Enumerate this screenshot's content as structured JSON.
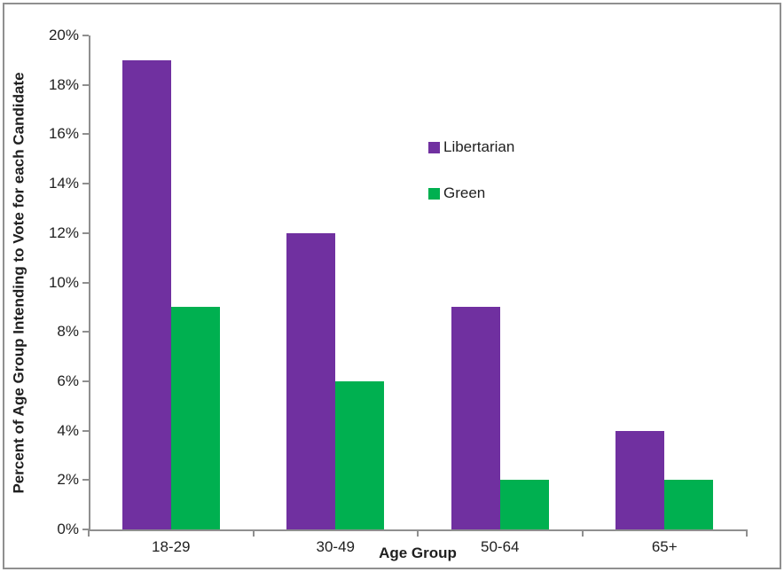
{
  "chart_data": {
    "type": "bar",
    "title": "",
    "categories": [
      "18-29",
      "30-49",
      "50-64",
      "65+"
    ],
    "series": [
      {
        "name": "Libertarian",
        "color": "#7030A0",
        "values": [
          19,
          12,
          9,
          4
        ]
      },
      {
        "name": "Green",
        "color": "#00B050",
        "values": [
          9,
          6,
          2,
          2
        ]
      }
    ],
    "xlabel": "Age Group",
    "ylabel": "Percent of Age Group Intending to Vote for each Candidate",
    "ylim": [
      0,
      20
    ],
    "ytick_step": 2,
    "ytick_labels": [
      "0%",
      "2%",
      "4%",
      "6%",
      "8%",
      "10%",
      "12%",
      "14%",
      "16%",
      "18%",
      "20%"
    ],
    "grid": false,
    "legend_position": "inside-upper-middle",
    "colors": {
      "axis": "#8F8F8F",
      "text": "#1F1F1F",
      "border": "#8F8F8F",
      "background": "#FFFFFF"
    }
  }
}
